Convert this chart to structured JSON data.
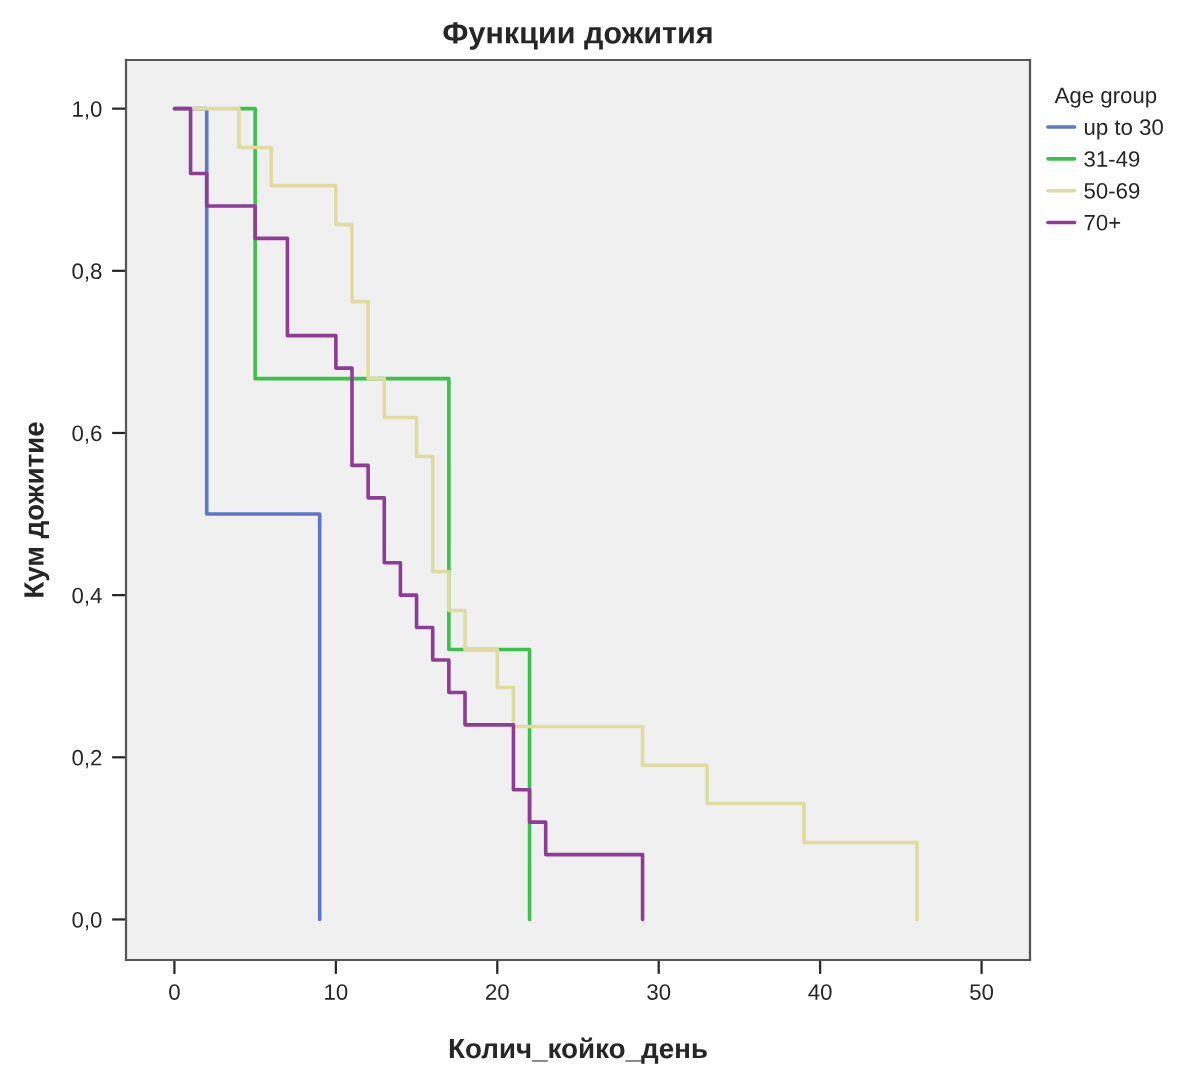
{
  "chart_data": {
    "type": "step",
    "title": "Функции дожития",
    "xlabel": "Колич_койко_день",
    "ylabel": "Кум дожитие",
    "legend_title": "Age group",
    "legend": "right",
    "grid": false,
    "xlim": [
      -3,
      53
    ],
    "xticks": [
      0,
      10,
      20,
      30,
      40,
      50
    ],
    "ylim": [
      -0.05,
      1.06
    ],
    "yticks": [
      {
        "value": 0,
        "label": "0,0"
      },
      {
        "value": 0.2,
        "label": "0,2"
      },
      {
        "value": 0.4,
        "label": "0,4"
      },
      {
        "value": 0.6,
        "label": "0,6"
      },
      {
        "value": 0.8,
        "label": "0,8"
      },
      {
        "value": 1.0,
        "label": "1,0"
      }
    ],
    "series": [
      {
        "name": "up to 30",
        "color": "#5e75c8",
        "x": [
          0,
          2,
          9
        ],
        "values": [
          1.0,
          0.5,
          0
        ]
      },
      {
        "name": "31-49",
        "color": "#3cc24a",
        "x": [
          4,
          5,
          17,
          22
        ],
        "values": [
          1.0,
          0.667,
          0.333,
          0
        ]
      },
      {
        "name": "50-69",
        "color": "#e0dca0",
        "x": [
          0,
          4,
          6,
          10,
          11,
          12,
          13,
          15,
          16,
          17,
          18,
          20,
          21,
          29,
          33,
          39,
          46
        ],
        "values": [
          1.0,
          0.952,
          0.905,
          0.857,
          0.762,
          0.667,
          0.619,
          0.571,
          0.429,
          0.381,
          0.333,
          0.286,
          0.238,
          0.19,
          0.143,
          0.095,
          0
        ]
      },
      {
        "name": "70+",
        "color": "#8f3c96",
        "x": [
          0,
          1,
          2,
          5,
          7,
          10,
          11,
          12,
          13,
          14,
          15,
          16,
          17,
          18,
          21,
          22,
          23,
          29
        ],
        "values": [
          1.0,
          0.92,
          0.88,
          0.84,
          0.72,
          0.68,
          0.56,
          0.52,
          0.44,
          0.4,
          0.36,
          0.32,
          0.28,
          0.24,
          0.16,
          0.12,
          0.08,
          0
        ]
      }
    ]
  }
}
